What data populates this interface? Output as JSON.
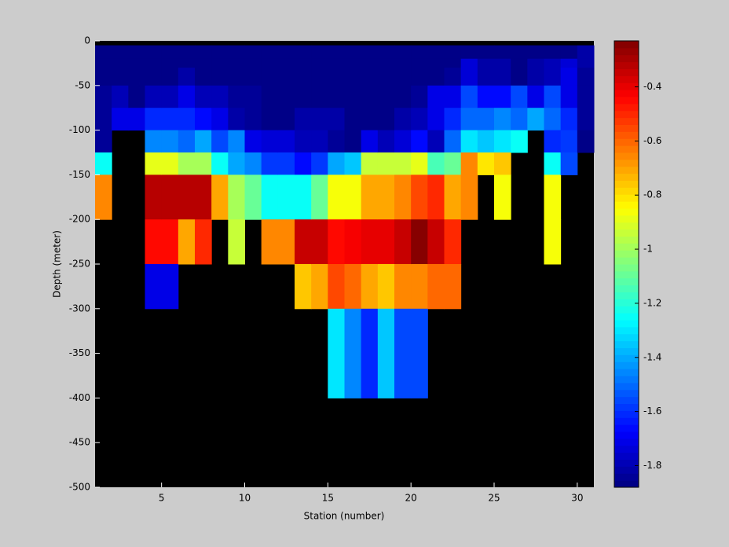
{
  "chart_data": {
    "type": "heatmap",
    "xlabel": "Station (number)",
    "ylabel": "Depth (meter)",
    "xlim": [
      1,
      31
    ],
    "ylim": [
      -500,
      0
    ],
    "xticks": [
      5,
      10,
      15,
      20,
      25,
      30
    ],
    "yticks": [
      0,
      -50,
      -100,
      -150,
      -200,
      -250,
      -300,
      -350,
      -400,
      -450,
      -500
    ],
    "x_edges": [
      1,
      2,
      3,
      4,
      5,
      6,
      7,
      8,
      9,
      10,
      11,
      12,
      13,
      14,
      15,
      16,
      17,
      18,
      19,
      20,
      21,
      22,
      23,
      24,
      25,
      26,
      27,
      28,
      29,
      30,
      31
    ],
    "y_edges": [
      -5,
      -20,
      -30,
      -50,
      -75,
      -100,
      -125,
      -150,
      -200,
      -250,
      -300,
      -400,
      -500
    ],
    "colormap": "jet",
    "clim": [
      -1.88,
      -0.23
    ],
    "missing_color": "#000000",
    "colorbar_ticks": [
      -0.4,
      -0.6,
      -0.8,
      -1,
      -1.2,
      -1.4,
      -1.6,
      -1.8
    ],
    "values": [
      [
        -1.87,
        -1.87,
        -1.87,
        -1.85,
        -1.85,
        -1.85,
        -1.25,
        -0.65,
        null,
        null,
        null,
        null
      ],
      [
        -1.87,
        -1.87,
        -1.87,
        -1.78,
        -1.72,
        null,
        null,
        null,
        null,
        null,
        null,
        null
      ],
      [
        -1.87,
        -1.87,
        -1.87,
        -1.87,
        -1.7,
        null,
        null,
        null,
        null,
        null,
        null,
        null
      ],
      [
        -1.87,
        -1.87,
        -1.87,
        -1.8,
        -1.6,
        -1.45,
        -0.9,
        -0.33,
        -0.45,
        -1.7,
        null,
        null
      ],
      [
        -1.87,
        -1.87,
        -1.87,
        -1.8,
        -1.6,
        -1.45,
        -0.9,
        -0.33,
        -0.45,
        -1.7,
        null,
        null
      ],
      [
        -1.87,
        -1.87,
        -1.82,
        -1.72,
        -1.6,
        -1.5,
        -1.0,
        -0.33,
        -0.7,
        null,
        null,
        null
      ],
      [
        -1.87,
        -1.87,
        -1.87,
        -1.8,
        -1.65,
        -1.4,
        -1.0,
        -0.33,
        -0.5,
        null,
        null,
        null
      ],
      [
        -1.87,
        -1.87,
        -1.87,
        -1.78,
        -1.7,
        -1.55,
        -1.25,
        -0.7,
        null,
        null,
        null,
        null
      ],
      [
        -1.87,
        -1.87,
        -1.87,
        -1.85,
        -1.82,
        -1.45,
        -1.4,
        -1.0,
        -0.95,
        null,
        null,
        null
      ],
      [
        -1.87,
        -1.87,
        -1.87,
        -1.85,
        -1.85,
        -1.72,
        -1.45,
        -1.1,
        null,
        null,
        null,
        null
      ],
      [
        -1.87,
        -1.87,
        -1.87,
        -1.87,
        -1.87,
        -1.75,
        -1.58,
        -1.25,
        -0.65,
        null,
        null,
        null
      ],
      [
        -1.87,
        -1.87,
        -1.87,
        -1.87,
        -1.87,
        -1.75,
        -1.58,
        -1.25,
        -0.65,
        null,
        null,
        null
      ],
      [
        -1.87,
        -1.87,
        -1.87,
        -1.87,
        -1.82,
        -1.78,
        -1.65,
        -1.25,
        -0.35,
        -0.75,
        null,
        null
      ],
      [
        -1.87,
        -1.87,
        -1.87,
        -1.87,
        -1.82,
        -1.8,
        -1.58,
        -1.1,
        -0.35,
        -0.7,
        null,
        null
      ],
      [
        -1.87,
        -1.87,
        -1.87,
        -1.87,
        -1.82,
        -1.85,
        -1.4,
        -0.85,
        -0.45,
        -0.55,
        -1.3,
        null
      ],
      [
        -1.87,
        -1.87,
        -1.87,
        -1.87,
        -1.87,
        -1.87,
        -1.35,
        -0.85,
        -0.42,
        -0.6,
        -1.45,
        null
      ],
      [
        -1.87,
        -1.87,
        -1.87,
        -1.87,
        -1.87,
        -1.7,
        -0.95,
        -0.7,
        -0.4,
        -0.7,
        -1.6,
        null
      ],
      [
        -1.87,
        -1.87,
        -1.87,
        -1.87,
        -1.87,
        -1.8,
        -0.95,
        -0.7,
        -0.4,
        -0.75,
        -1.35,
        null
      ],
      [
        -1.87,
        -1.87,
        -1.87,
        -1.87,
        -1.82,
        -1.75,
        -0.95,
        -0.65,
        -0.35,
        -0.65,
        -1.55,
        null
      ],
      [
        -1.87,
        -1.87,
        -1.87,
        -1.85,
        -1.78,
        -1.65,
        -0.9,
        -0.55,
        -0.25,
        -0.65,
        -1.55,
        null
      ],
      [
        -1.87,
        -1.87,
        -1.87,
        -1.72,
        -1.7,
        -1.78,
        -1.15,
        -0.5,
        -0.35,
        -0.6,
        null,
        null
      ],
      [
        -1.87,
        -1.87,
        -1.85,
        -1.72,
        -1.62,
        -1.5,
        -1.1,
        -0.7,
        -0.5,
        -0.6,
        null,
        null
      ],
      [
        -1.87,
        -1.75,
        -1.75,
        -1.55,
        -1.5,
        -1.3,
        -0.65,
        -0.65,
        null,
        null,
        null,
        null
      ],
      [
        -1.87,
        -1.82,
        -1.82,
        -1.65,
        -1.5,
        -1.35,
        -0.8,
        null,
        null,
        null,
        null,
        null
      ],
      [
        -1.87,
        -1.82,
        -1.82,
        -1.65,
        -1.45,
        -1.3,
        -0.75,
        -0.85,
        null,
        null,
        null,
        null
      ],
      [
        -1.87,
        -1.87,
        -1.87,
        -1.55,
        -1.5,
        -1.25,
        null,
        null,
        null,
        null,
        null,
        null
      ],
      [
        -1.87,
        -1.82,
        -1.82,
        -1.7,
        -1.4,
        null,
        null,
        null,
        null,
        null,
        null,
        null
      ],
      [
        -1.87,
        -1.78,
        -1.78,
        -1.55,
        -1.5,
        -1.6,
        -1.25,
        -0.85,
        -0.85,
        null,
        null,
        null
      ],
      [
        -1.87,
        -1.75,
        -1.72,
        -1.72,
        -1.62,
        -1.58,
        -1.55,
        null,
        null,
        null,
        null,
        null
      ],
      [
        -1.82,
        -1.82,
        -1.85,
        -1.85,
        -1.85,
        -1.87,
        null,
        null,
        null,
        null,
        null,
        null
      ]
    ]
  }
}
